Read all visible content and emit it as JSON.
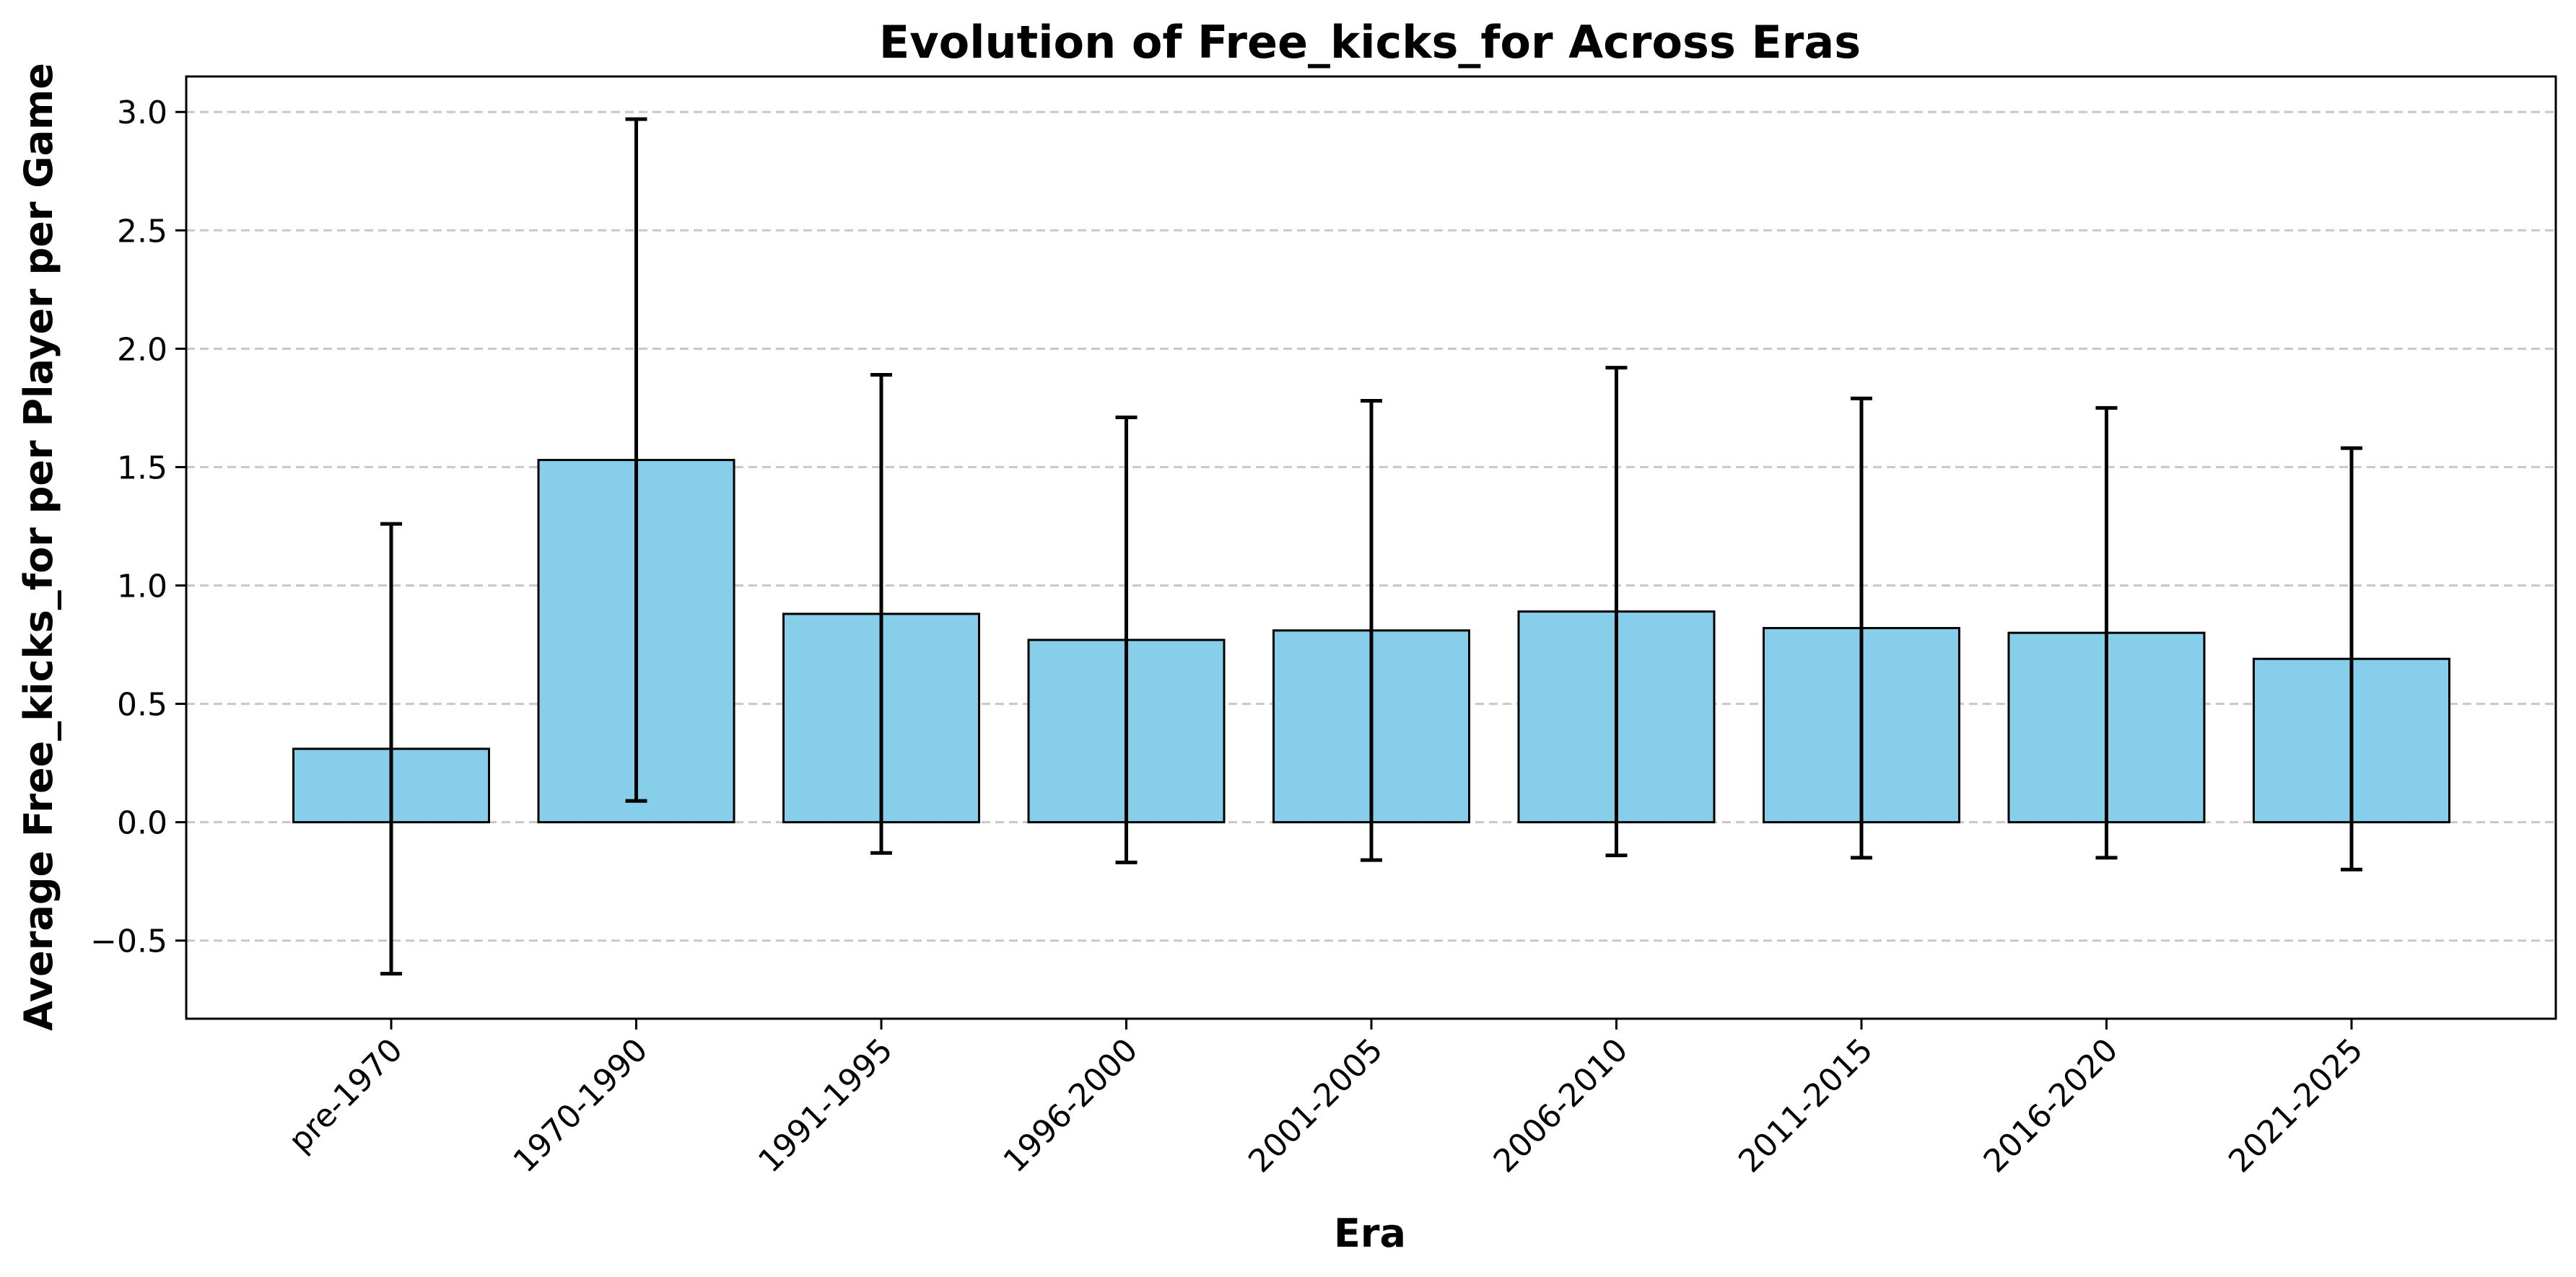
{
  "chart_data": {
    "type": "bar",
    "title": "Evolution of Free_kicks_for Across Eras",
    "xlabel": "Era",
    "ylabel": "Average Free_kicks_for per Player per Game",
    "categories": [
      "pre-1970",
      "1970-1990",
      "1991-1995",
      "1996-2000",
      "2001-2005",
      "2006-2010",
      "2011-2015",
      "2016-2020",
      "2021-2025"
    ],
    "values": [
      0.31,
      1.53,
      0.88,
      0.77,
      0.81,
      0.89,
      0.82,
      0.8,
      0.69
    ],
    "error": [
      0.95,
      1.44,
      1.01,
      0.94,
      0.97,
      1.03,
      0.97,
      0.95,
      0.89
    ],
    "ylim": [
      -0.83,
      3.15
    ],
    "yticks": [
      -0.5,
      0.0,
      0.5,
      1.0,
      1.5,
      2.0,
      2.5,
      3.0
    ],
    "ytick_labels": [
      "−0.5",
      "0.0",
      "0.5",
      "1.0",
      "1.5",
      "2.0",
      "2.5",
      "3.0"
    ],
    "grid": "y-dashed",
    "bar_color": "#87CEEB",
    "edge_color": "#000000",
    "grid_color": "#c8c8c8"
  }
}
